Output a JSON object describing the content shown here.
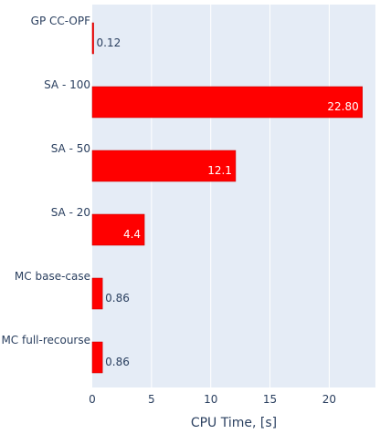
{
  "chart_data": {
    "type": "bar",
    "orientation": "horizontal",
    "categories": [
      "GP CC-OPF",
      "SA - 100",
      "SA - 50",
      "SA - 20",
      "MC base-case",
      "MC full-recourse"
    ],
    "values": [
      0.12,
      22.8,
      12.1,
      4.4,
      0.86,
      0.86
    ],
    "data_labels": [
      "0.12",
      "22.80",
      "12.1",
      "4.4",
      "0.86",
      "0.86"
    ],
    "xlabel": "CPU Time, [s]",
    "ylabel": "",
    "xlim": [
      0,
      23.9
    ],
    "xticks": [
      0,
      5,
      10,
      15,
      20
    ],
    "grid": true,
    "colors": {
      "bar": "#ff0000",
      "bar_outline": "#c00000",
      "plot_bg": "#e5ecf6",
      "grid": "#ffffff",
      "text": "#2a3f5f"
    }
  }
}
